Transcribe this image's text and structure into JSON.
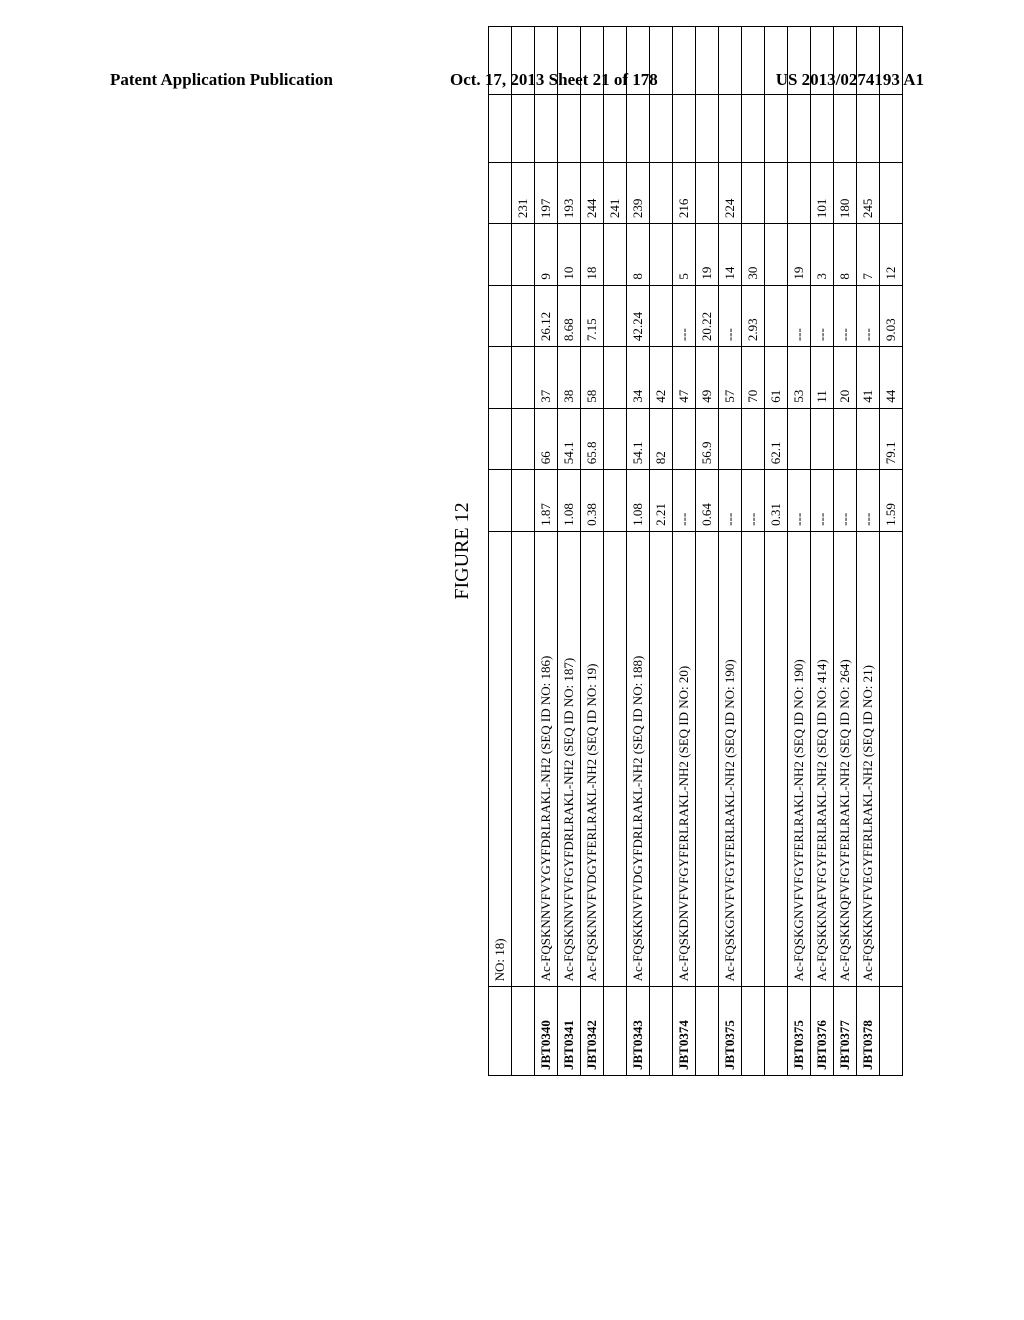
{
  "header": {
    "left": "Patent Application Publication",
    "center": "Oct. 17, 2013  Sheet 21 of 178",
    "right": "US 2013/0274193 A1"
  },
  "figure_title": "FIGURE 12",
  "table": {
    "rows": [
      {
        "id": "",
        "seq": "NO: 18)",
        "c3": "",
        "c4": "",
        "c5": "",
        "c6": "",
        "c7": "",
        "c8": "",
        "c9": "",
        "c10": ""
      },
      {
        "id": "",
        "seq": "",
        "c3": "",
        "c4": "",
        "c5": "",
        "c6": "",
        "c7": "",
        "c8": "231",
        "c9": "",
        "c10": ""
      },
      {
        "id": "JBT0340",
        "seq": "Ac-FQSKNNVFVYGYFDRLRAKL-NH2 (SEQ ID NO: 186)",
        "c3": "1.87",
        "c4": "66",
        "c5": "37",
        "c6": "26.12",
        "c7": "9",
        "c8": "197",
        "c9": "",
        "c10": ""
      },
      {
        "id": "JBT0341",
        "seq": "Ac-FQSKNNVFVFGYFDRLRAKL-NH2 (SEQ ID NO: 187)",
        "c3": "1.08",
        "c4": "54.1",
        "c5": "38",
        "c6": "8.68",
        "c7": "10",
        "c8": "193",
        "c9": "",
        "c10": ""
      },
      {
        "id": "JBT0342",
        "seq": "Ac-FQSKNNVFVDGYFERLRAKL-NH2 (SEQ ID NO: 19)",
        "c3": "0.38",
        "c4": "65.8",
        "c5": "58",
        "c6": "7.15",
        "c7": "18",
        "c8": "244",
        "c9": "",
        "c10": ""
      },
      {
        "id": "",
        "seq": "",
        "c3": "",
        "c4": "",
        "c5": "",
        "c6": "",
        "c7": "",
        "c8": "241",
        "c9": "",
        "c10": ""
      },
      {
        "id": "JBT0343",
        "seq": "Ac-FQSKKNVFVDGYFDRLRAKL-NH2 (SEQ ID NO: 188)",
        "c3": "1.08",
        "c4": "54.1",
        "c5": "34",
        "c6": "42.24",
        "c7": "8",
        "c8": "239",
        "c9": "",
        "c10": ""
      },
      {
        "id": "",
        "seq": "",
        "c3": "2.21",
        "c4": "82",
        "c5": "42",
        "c6": "",
        "c7": "",
        "c8": "",
        "c9": "",
        "c10": ""
      },
      {
        "id": "JBT0374",
        "seq": "Ac-FQSKDNVFVFGYFERLRAKL-NH2 (SEQ ID NO: 20)",
        "c3": "---",
        "c4": "",
        "c5": "47",
        "c6": "---",
        "c7": "5",
        "c8": "216",
        "c9": "",
        "c10": ""
      },
      {
        "id": "",
        "seq": "",
        "c3": "0.64",
        "c4": "56.9",
        "c5": "49",
        "c6": "20.22",
        "c7": "19",
        "c8": "",
        "c9": "",
        "c10": ""
      },
      {
        "id": "JBT0375",
        "seq": "Ac-FQSKGNVFVFGYFERLRAKL-NH2 (SEQ ID NO: 190)",
        "c3": "---",
        "c4": "",
        "c5": "57",
        "c6": "---",
        "c7": "14",
        "c8": "224",
        "c9": "",
        "c10": ""
      },
      {
        "id": "",
        "seq": "",
        "c3": "---",
        "c4": "",
        "c5": "70",
        "c6": "2.93",
        "c7": "30",
        "c8": "",
        "c9": "",
        "c10": ""
      },
      {
        "id": "",
        "seq": "",
        "c3": "0.31",
        "c4": "62.1",
        "c5": "61",
        "c6": "",
        "c7": "",
        "c8": "",
        "c9": "",
        "c10": ""
      },
      {
        "id": "JBT0375",
        "seq": "Ac-FQSKGNVFVFGYFERLRAKL-NH2 (SEQ ID NO: 190)",
        "c3": "---",
        "c4": "",
        "c5": "53",
        "c6": "---",
        "c7": "19",
        "c8": "",
        "c9": "",
        "c10": ""
      },
      {
        "id": "JBT0376",
        "seq": "Ac-FQSKKNAFVFGYFERLRAKL-NH2 (SEQ ID NO: 414)",
        "c3": "---",
        "c4": "",
        "c5": "11",
        "c6": "---",
        "c7": "3",
        "c8": "101",
        "c9": "",
        "c10": ""
      },
      {
        "id": "JBT0377",
        "seq": "Ac-FQSKKNQFVFGYFERLRAKL-NH2 (SEQ ID NO: 264)",
        "c3": "---",
        "c4": "",
        "c5": "20",
        "c6": "---",
        "c7": "8",
        "c8": "180",
        "c9": "",
        "c10": ""
      },
      {
        "id": "JBT0378",
        "seq": "Ac-FQSKKNVFVEGYFERLRAKL-NH2 (SEQ ID NO: 21)",
        "c3": "---",
        "c4": "",
        "c5": "41",
        "c6": "---",
        "c7": "7",
        "c8": "245",
        "c9": "",
        "c10": ""
      },
      {
        "id": "",
        "seq": "",
        "c3": "1.59",
        "c4": "79.1",
        "c5": "44",
        "c6": "9.03",
        "c7": "12",
        "c8": "",
        "c9": "",
        "c10": ""
      }
    ]
  }
}
